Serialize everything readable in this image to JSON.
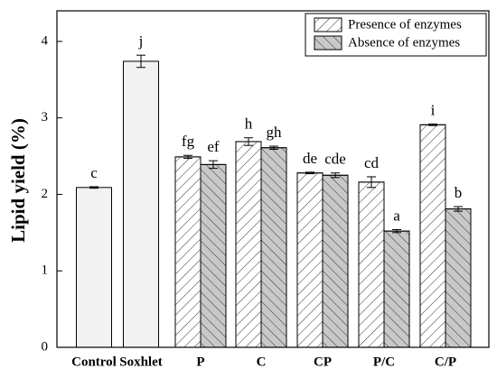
{
  "chart_data": {
    "type": "bar",
    "y_label": "Lipid yield (%)",
    "categories": [
      "Control",
      "Soxhlet",
      "P",
      "C",
      "CP",
      "P/C",
      "C/P"
    ],
    "reference_bars": {
      "color": "#f2f2f2",
      "values": [
        2.09,
        3.74,
        null,
        null,
        null,
        null,
        null
      ],
      "errors": [
        0.01,
        0.08,
        null,
        null,
        null,
        null,
        null
      ],
      "annotations": [
        "c",
        "j",
        null,
        null,
        null,
        null,
        null
      ]
    },
    "series": [
      {
        "name": "Presence of enzymes",
        "color": "#ffffff",
        "hatch": "/",
        "values": [
          null,
          null,
          2.49,
          2.69,
          2.28,
          2.16,
          2.91
        ],
        "errors": [
          null,
          null,
          0.02,
          0.05,
          0.01,
          0.07,
          0.01
        ],
        "annotations": [
          null,
          null,
          "fg",
          "h",
          "de",
          "cd",
          "i"
        ]
      },
      {
        "name": "Absence of enzymes",
        "color": "#c8c8c8",
        "hatch": "\\",
        "values": [
          null,
          null,
          2.39,
          2.61,
          2.25,
          1.52,
          1.81
        ],
        "errors": [
          null,
          null,
          0.05,
          0.02,
          0.03,
          0.02,
          0.03
        ],
        "annotations": [
          null,
          null,
          "ef",
          "gh",
          "cde",
          "a",
          "b"
        ]
      }
    ],
    "ylim": [
      0,
      4.4
    ],
    "yticks": [
      0,
      1,
      2,
      3,
      4
    ],
    "legend": "upper right"
  }
}
